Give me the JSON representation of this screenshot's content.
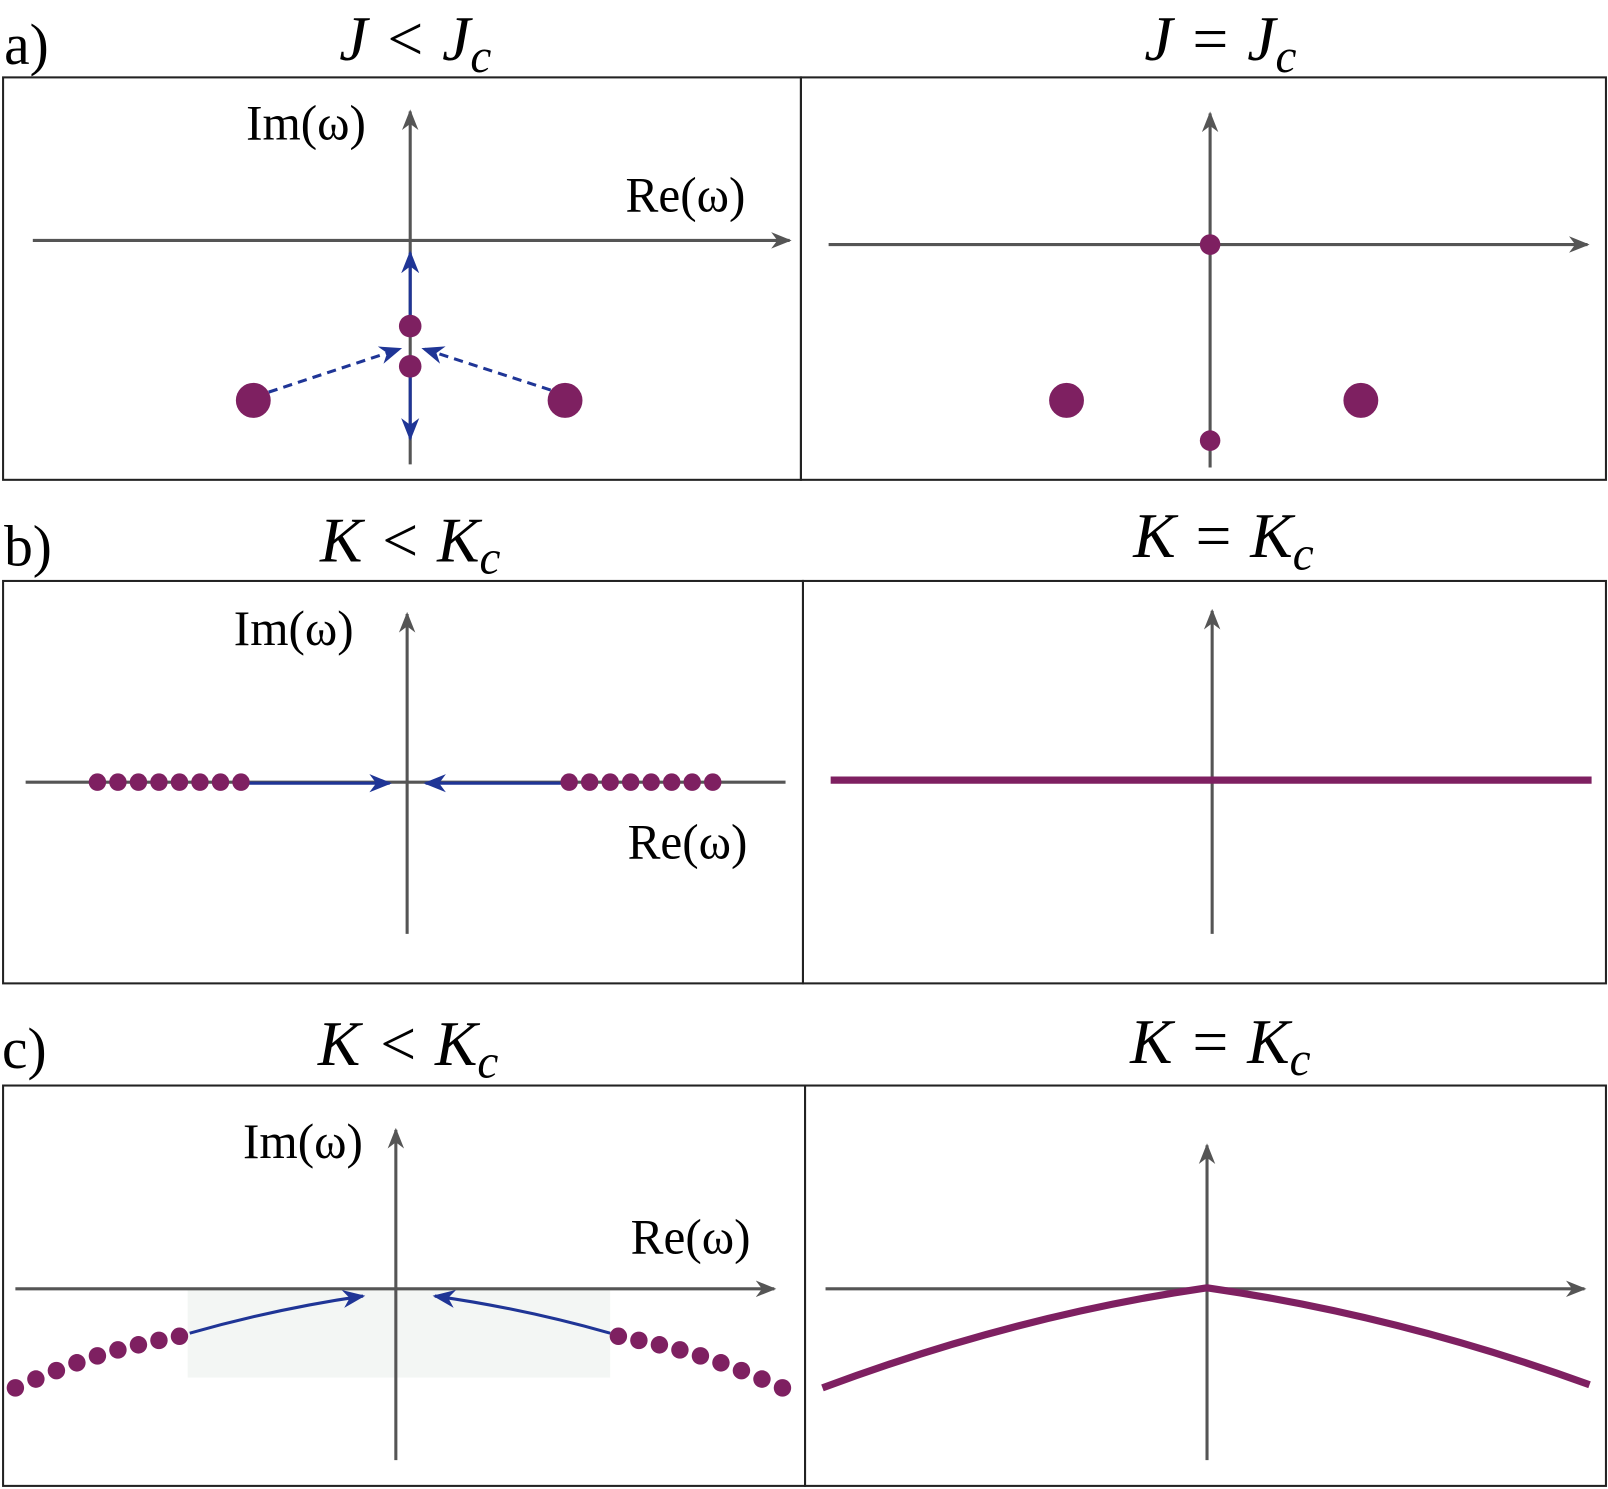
{
  "panels": [
    {
      "label": "a)",
      "left": {
        "title": "J < J",
        "title_sub": "c",
        "im_label": "Im(ω)",
        "re_label": "Re(ω)"
      },
      "right": {
        "title": "J = J",
        "title_sub": "c"
      }
    },
    {
      "label": "b)",
      "left": {
        "title": "K < K",
        "title_sub": "c",
        "im_label": "Im(ω)",
        "re_label": "Re(ω)"
      },
      "right": {
        "title": "K = K",
        "title_sub": "c"
      }
    },
    {
      "label": "c)",
      "left": {
        "title": "K < K",
        "title_sub": "c",
        "im_label": "Im(ω)",
        "re_label": "Re(ω)"
      },
      "right": {
        "title": "K = K",
        "title_sub": "c"
      }
    }
  ]
}
